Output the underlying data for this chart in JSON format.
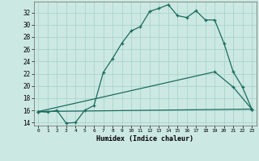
{
  "title": "",
  "xlabel": "Humidex (Indice chaleur)",
  "ylabel": "",
  "background_color": "#cce8e2",
  "grid_color": "#aad4cc",
  "line_color": "#1a6b5e",
  "xlim": [
    -0.5,
    23.5
  ],
  "ylim": [
    13.5,
    33.8
  ],
  "yticks": [
    14,
    16,
    18,
    20,
    22,
    24,
    26,
    28,
    30,
    32
  ],
  "xticks": [
    0,
    1,
    2,
    3,
    4,
    5,
    6,
    7,
    8,
    9,
    10,
    11,
    12,
    13,
    14,
    15,
    16,
    17,
    18,
    19,
    20,
    21,
    22,
    23
  ],
  "line1_x": [
    0,
    1,
    2,
    3,
    4,
    5,
    6,
    7,
    8,
    9,
    10,
    11,
    12,
    13,
    14,
    15,
    16,
    17,
    18,
    19,
    20,
    21,
    22,
    23
  ],
  "line1_y": [
    15.8,
    15.7,
    16.0,
    13.9,
    14.0,
    16.0,
    16.8,
    22.2,
    24.5,
    27.0,
    29.0,
    29.7,
    32.2,
    32.7,
    33.3,
    31.5,
    31.2,
    32.3,
    30.8,
    30.8,
    27.0,
    22.3,
    19.8,
    16.2
  ],
  "line2_x": [
    0,
    23
  ],
  "line2_y": [
    15.8,
    16.2
  ],
  "line3_x": [
    0,
    19,
    21,
    23
  ],
  "line3_y": [
    15.8,
    22.3,
    19.8,
    16.2
  ],
  "xlabel_fontsize": 6.0,
  "ytick_fontsize": 5.5,
  "xtick_fontsize": 4.5
}
